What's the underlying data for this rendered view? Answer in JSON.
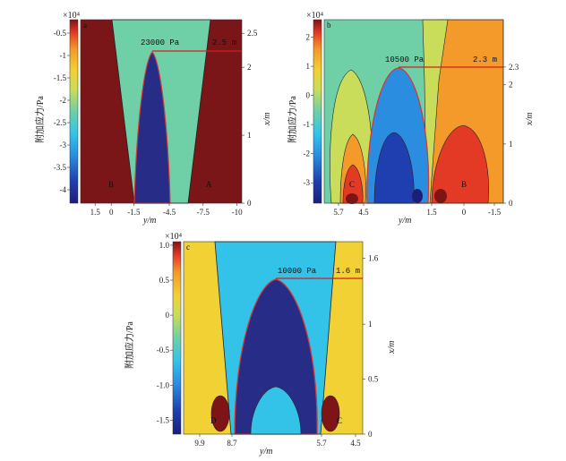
{
  "figure": {
    "colorbar_label": "附加应力/Pa",
    "colorbar_exponent": "×10⁴",
    "x_axis_label": "x/m",
    "y_axis_label": "y/m"
  },
  "chart_data": [
    {
      "type": "heatmap",
      "panel_label": "a",
      "xlabel": "y/m",
      "ylabel": "x/m",
      "colorbar_label": "附加应力/Pa",
      "colorbar_exponent": "×10⁴",
      "colorbar_ticks": [
        "-0.5",
        "-1",
        "-1.5",
        "-2",
        "-2.5",
        "-3",
        "-3.5",
        "-4"
      ],
      "colorbar_range": [
        -4.3,
        -0.2
      ],
      "y_ticks": [
        "1.5",
        "0",
        "-1.5",
        "-4.5",
        "-7.5",
        "-10"
      ],
      "x_ticks": [
        "0",
        "1",
        "2",
        "2.5"
      ],
      "x_range": [
        0,
        2.7
      ],
      "annotation_value": "23000 Pa",
      "annotation_depth": "2.5 m",
      "annotation_depth_value": 2.5,
      "point_labels": [
        "B",
        "A"
      ]
    },
    {
      "type": "heatmap",
      "panel_label": "b",
      "xlabel": "y/m",
      "ylabel": "x/m",
      "colorbar_label": "附加应力/Pa",
      "colorbar_exponent": "×10⁴",
      "colorbar_ticks": [
        "2",
        "1",
        "0",
        "-1",
        "-2",
        "-3"
      ],
      "colorbar_range": [
        -3.7,
        2.6
      ],
      "y_ticks": [
        "5.7",
        "4.5",
        "1.5",
        "0",
        "-1.5"
      ],
      "x_ticks": [
        "0",
        "1",
        "2",
        "2.3"
      ],
      "x_range": [
        0,
        3.1
      ],
      "annotation_value": "10500 Pa",
      "annotation_depth": "2.3 m",
      "annotation_depth_value": 2.3,
      "point_labels": [
        "C",
        "B"
      ]
    },
    {
      "type": "heatmap",
      "panel_label": "c",
      "xlabel": "y/m",
      "ylabel": "x/m",
      "colorbar_label": "附加应力/Pa",
      "colorbar_exponent": "×10⁴",
      "colorbar_ticks": [
        "1.0",
        "0.5",
        "0",
        "-0.5",
        "-1.0",
        "-1.5"
      ],
      "colorbar_range": [
        -1.7,
        1.05
      ],
      "y_ticks": [
        "9.9",
        "8.7",
        "5.7",
        "4.5"
      ],
      "x_ticks": [
        "0",
        "0.5",
        "1",
        "1.6"
      ],
      "x_range": [
        0,
        1.75
      ],
      "annotation_value": "10000 Pa",
      "annotation_depth": "1.6 m",
      "annotation_depth_value": 1.6,
      "point_labels": [
        "D",
        "C"
      ]
    }
  ]
}
